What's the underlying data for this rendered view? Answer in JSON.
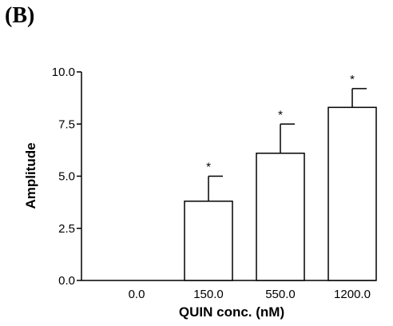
{
  "panel_label": "(B)",
  "chart_data": {
    "type": "bar",
    "title": "",
    "xlabel": "QUIN conc. (nM)",
    "ylabel": "Amplitude",
    "categories": [
      "0.0",
      "150.0",
      "550.0",
      "1200.0"
    ],
    "values": [
      0.0,
      3.8,
      6.1,
      8.3
    ],
    "errors": [
      0.0,
      1.2,
      1.4,
      0.9
    ],
    "significance": [
      "",
      "*",
      "*",
      "*"
    ],
    "ylim": [
      0,
      10
    ],
    "yticks": [
      "0.0",
      "2.5",
      "5.0",
      "7.5",
      "10.0"
    ],
    "bar_fill": "#ffffff",
    "bar_stroke": "#000000",
    "grid": false,
    "legend": "none"
  }
}
